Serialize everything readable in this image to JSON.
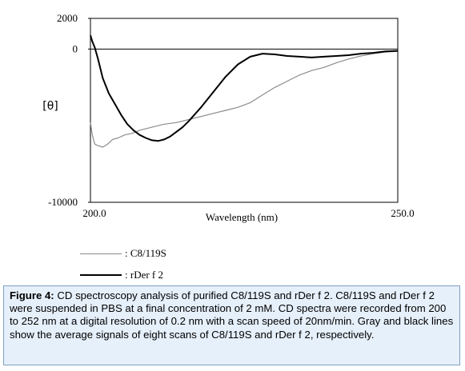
{
  "chart_data": {
    "type": "line",
    "title": "",
    "xlabel": "Wavelength (nm)",
    "ylabel": "[θ]",
    "xlim": [
      200,
      250
    ],
    "ylim": [
      -10000,
      2000
    ],
    "x_tick_labels": [
      "200.0",
      "250.0"
    ],
    "y_tick_labels": [
      "2000",
      "0",
      "-10000"
    ],
    "zero_line": true,
    "grid": false,
    "legend_position": "bottom-left",
    "series": [
      {
        "name": ": C8/119S",
        "color": "#8c8c8c",
        "x": [
          200,
          200.3,
          200.7,
          201.2,
          202,
          202.8,
          203.6,
          204.5,
          205.6,
          206.8,
          208,
          210,
          212,
          214,
          216,
          218,
          220,
          222,
          224,
          226,
          228,
          230,
          232,
          234,
          236,
          238,
          240,
          242,
          244,
          246,
          248,
          250
        ],
        "y": [
          -4800,
          -5600,
          -6200,
          -6300,
          -6400,
          -6200,
          -5900,
          -5800,
          -5600,
          -5500,
          -5300,
          -5100,
          -4900,
          -4800,
          -4600,
          -4400,
          -4200,
          -4000,
          -3800,
          -3500,
          -3000,
          -2500,
          -2100,
          -1700,
          -1400,
          -1200,
          -900,
          -650,
          -450,
          -300,
          -200,
          -150
        ]
      },
      {
        "name": ": rDer f 2",
        "color": "#000000",
        "x": [
          200,
          200.3,
          200.7,
          201.2,
          202,
          203,
          204,
          205,
          206,
          207,
          208,
          209,
          210,
          211,
          212,
          213,
          214,
          215,
          216,
          218,
          220,
          222,
          224,
          226,
          228,
          230,
          232,
          234,
          236,
          238,
          240,
          242,
          244,
          246,
          248,
          250
        ],
        "y": [
          900,
          500,
          100,
          -600,
          -1900,
          -2900,
          -3600,
          -4300,
          -4900,
          -5300,
          -5600,
          -5800,
          -5950,
          -6000,
          -5900,
          -5700,
          -5400,
          -5100,
          -4700,
          -3800,
          -2800,
          -1800,
          -1000,
          -500,
          -300,
          -350,
          -450,
          -500,
          -550,
          -500,
          -450,
          -400,
          -300,
          -250,
          -150,
          -120
        ]
      }
    ]
  },
  "caption": {
    "label": "Figure 4:",
    "text": " CD spectroscopy analysis of purified C8/119S and rDer f 2. C8/119S and rDer f 2 were suspended in PBS at a final concentration of 2 mM. CD spectra were recorded from 200 to 252 nm at a digital resolution of 0.2 nm with a scan speed of 20nm/min. Gray and black lines show the average signals of eight scans of C8/119S and rDer f 2, respectively."
  }
}
